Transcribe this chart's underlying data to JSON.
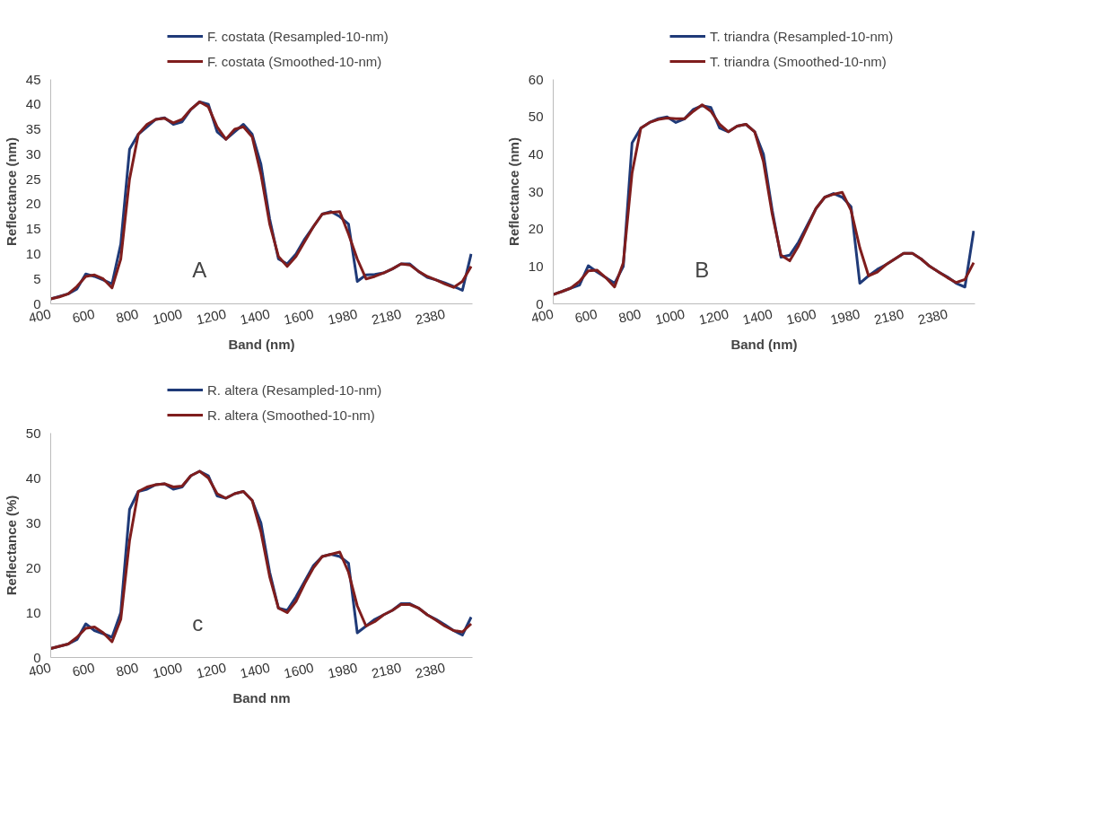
{
  "chart_data": [
    {
      "type": "line",
      "xlabel": "Band (nm)",
      "ylabel": "Reflectance (nm)",
      "annotations": [
        "A"
      ],
      "legend": "top",
      "grid": false,
      "line_style": "solid",
      "marker": "none",
      "categories": [
        "400",
        null,
        null,
        null,
        null,
        "600",
        null,
        null,
        null,
        null,
        "800",
        null,
        null,
        null,
        null,
        "1000",
        null,
        null,
        null,
        null,
        "1200",
        null,
        null,
        null,
        null,
        "1400",
        null,
        null,
        null,
        null,
        "1600",
        null,
        null,
        null,
        null,
        "1980",
        null,
        null,
        null,
        null,
        "2180",
        null,
        null,
        null,
        null,
        "2380",
        null,
        null,
        null
      ],
      "ylim": [
        0,
        45
      ],
      "yticks": [
        0,
        5,
        10,
        15,
        20,
        25,
        30,
        35,
        40,
        45
      ],
      "series": [
        {
          "name": "F. costata (Resampled-10-nm)",
          "color": "#1f3a78",
          "values": [
            1,
            1.5,
            2,
            3,
            6,
            5.5,
            4.8,
            4,
            12,
            31,
            34,
            35.5,
            37,
            37.3,
            36,
            36.5,
            39,
            40.5,
            40,
            34.5,
            33,
            34.5,
            36,
            34,
            28,
            17,
            9,
            8,
            10,
            13,
            15.5,
            18,
            18.5,
            17.5,
            16,
            4.5,
            5.8,
            5.9,
            6.2,
            7,
            8,
            8,
            6.5,
            5.3,
            4.8,
            4.2,
            3.5,
            2.7,
            10
          ]
        },
        {
          "name": "F. costata (Smoothed-10-nm)",
          "color": "#7f1d1d",
          "values": [
            1,
            1.4,
            2,
            3.5,
            5.5,
            5.8,
            5,
            3.2,
            9,
            25,
            34,
            36,
            37,
            37.2,
            36.3,
            37,
            39,
            40.5,
            39.5,
            35.5,
            33,
            35,
            35.5,
            33.5,
            26,
            16,
            9.5,
            7.5,
            9.5,
            12.5,
            15.5,
            18,
            18.3,
            18.5,
            14,
            9,
            5,
            5.5,
            6.2,
            7,
            8,
            7.8,
            6.5,
            5.5,
            4.8,
            4,
            3.3,
            4.5,
            7.5
          ]
        }
      ]
    },
    {
      "type": "line",
      "xlabel": "Band (nm)",
      "ylabel": "Reflectance (nm)",
      "annotations": [
        "B"
      ],
      "legend": "top",
      "grid": false,
      "line_style": "solid",
      "marker": "none",
      "categories": [
        "400",
        null,
        null,
        null,
        null,
        "600",
        null,
        null,
        null,
        null,
        "800",
        null,
        null,
        null,
        null,
        "1000",
        null,
        null,
        null,
        null,
        "1200",
        null,
        null,
        null,
        null,
        "1400",
        null,
        null,
        null,
        null,
        "1600",
        null,
        null,
        null,
        null,
        "1980",
        null,
        null,
        null,
        null,
        "2180",
        null,
        null,
        null,
        null,
        "2380",
        null,
        null,
        null
      ],
      "ylim": [
        0,
        60
      ],
      "yticks": [
        0,
        10,
        20,
        30,
        40,
        50,
        60
      ],
      "series": [
        {
          "name": "T. triandra (Resampled-10-nm)",
          "color": "#1f3a78",
          "values": [
            2.5,
            3.3,
            4.2,
            5,
            10.2,
            8.5,
            7,
            5.5,
            10,
            43,
            47,
            48.5,
            49.5,
            50,
            48.5,
            49.5,
            52,
            53,
            52.5,
            47,
            46,
            47.5,
            48,
            46,
            40,
            25,
            12.5,
            13,
            16.5,
            21,
            25.5,
            28.5,
            29.5,
            28.5,
            26,
            5.5,
            7.5,
            9.2,
            10.5,
            12,
            13.5,
            13.5,
            12,
            10,
            8.5,
            7.2,
            5.5,
            4.5,
            19.5
          ]
        },
        {
          "name": "T. triandra (Smoothed-10-nm)",
          "color": "#7f1d1d",
          "values": [
            2.5,
            3.3,
            4.2,
            6,
            8.8,
            9,
            7,
            4.5,
            11,
            35,
            47,
            48.5,
            49.3,
            49.7,
            49.5,
            49.5,
            51.5,
            53.2,
            51.5,
            48,
            46,
            47.5,
            48,
            46,
            38,
            24,
            13,
            11.5,
            15.5,
            20.5,
            25.5,
            28.5,
            29.3,
            29.8,
            25,
            15,
            7.5,
            8.5,
            10.5,
            12,
            13.5,
            13.5,
            12,
            10,
            8.5,
            7,
            5.7,
            6.5,
            11
          ]
        }
      ]
    },
    {
      "type": "line",
      "xlabel": "Band nm",
      "ylabel": "Reflectance (%)",
      "annotations": [
        "c"
      ],
      "legend": "top",
      "grid": false,
      "line_style": "solid",
      "marker": "none",
      "categories": [
        "400",
        null,
        null,
        null,
        null,
        "600",
        null,
        null,
        null,
        null,
        "800",
        null,
        null,
        null,
        null,
        "1000",
        null,
        null,
        null,
        null,
        "1200",
        null,
        null,
        null,
        null,
        "1400",
        null,
        null,
        null,
        null,
        "1600",
        null,
        null,
        null,
        null,
        "1980",
        null,
        null,
        null,
        null,
        "2180",
        null,
        null,
        null,
        null,
        "2380",
        null,
        null,
        null
      ],
      "ylim": [
        0,
        50
      ],
      "yticks": [
        0,
        10,
        20,
        30,
        40,
        50
      ],
      "series": [
        {
          "name": "R. altera (Resampled-10-nm)",
          "color": "#1f3a78",
          "values": [
            2,
            2.5,
            3,
            4,
            7.5,
            6,
            5.3,
            4.5,
            10,
            33,
            37,
            37.5,
            38.5,
            38.7,
            37.5,
            38,
            40.5,
            41.5,
            40.5,
            36,
            35.5,
            36.5,
            37,
            35,
            30,
            19,
            11,
            10.5,
            13.5,
            17,
            20.5,
            22.5,
            23,
            22.5,
            21,
            5.5,
            7,
            8.5,
            9.5,
            10.5,
            12,
            12,
            11,
            9.5,
            8.5,
            7.3,
            6,
            5,
            9
          ]
        },
        {
          "name": "R. altera (Smoothed-10-nm)",
          "color": "#7f1d1d",
          "values": [
            2,
            2.5,
            3,
            4.5,
            6.5,
            6.8,
            5.5,
            3.5,
            8.5,
            26,
            37,
            38,
            38.5,
            38.7,
            38,
            38.2,
            40.5,
            41.5,
            40,
            36.5,
            35.5,
            36.5,
            37,
            35,
            28,
            18,
            11,
            10,
            12.5,
            16.5,
            20,
            22.5,
            23,
            23.5,
            19,
            11.5,
            7,
            8,
            9.5,
            10.5,
            11.8,
            11.8,
            11,
            9.5,
            8.3,
            7,
            6,
            5.7,
            7.5
          ]
        }
      ]
    }
  ]
}
